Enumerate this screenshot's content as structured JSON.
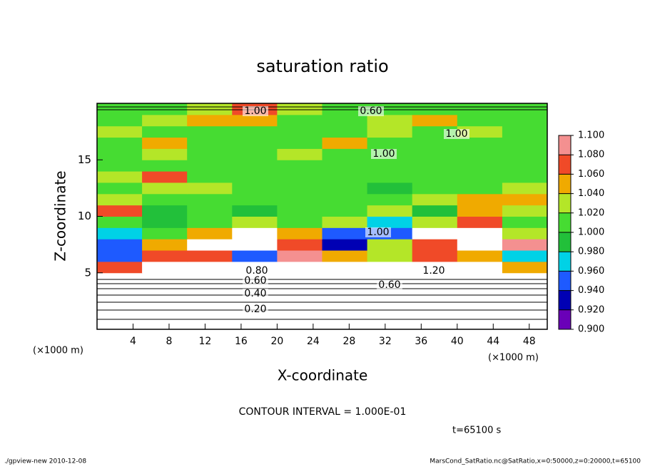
{
  "chart_data": {
    "type": "contour",
    "title": "saturation ratio",
    "xlabel": "X-coordinate",
    "ylabel": "Z-coordinate",
    "x_unit_label": "(×1000 m)",
    "x_unit_label_right": "(×1000 m)",
    "contour_interval": "CONTOUR INTERVAL = 1.000E-01",
    "time_label": "t=65100 s",
    "footer_left": "./gpview-new  2010-12-08",
    "footer_right": "MarsCond_SatRatio.nc@SatRatio,x=0:50000,z=0:20000,t=65100",
    "xlim": [
      0,
      50
    ],
    "ylim": [
      0,
      20
    ],
    "xticks": [
      4,
      8,
      12,
      16,
      20,
      24,
      28,
      32,
      36,
      40,
      44,
      48
    ],
    "yticks": [
      5,
      10,
      15
    ],
    "x": [
      2.5,
      7.5,
      12.5,
      17.5,
      22.5,
      27.5,
      32.5,
      37.5,
      42.5,
      47.5
    ],
    "y": [
      0.5,
      1.5,
      2.5,
      3.5,
      4.5,
      5.5,
      6.5,
      7.5,
      8.5,
      9.5,
      10.5,
      11.5,
      12.5,
      13.5,
      14.5,
      15.5,
      16.5,
      17.5,
      18.5,
      19.5
    ],
    "z": [
      [
        0.1,
        0.1,
        0.1,
        0.1,
        0.1,
        0.1,
        0.1,
        0.1,
        0.1,
        0.1
      ],
      [
        0.25,
        0.25,
        0.25,
        0.25,
        0.25,
        0.25,
        0.25,
        0.25,
        0.25,
        0.25
      ],
      [
        0.4,
        0.4,
        0.4,
        0.4,
        0.4,
        0.4,
        0.4,
        0.4,
        0.4,
        0.4
      ],
      [
        0.55,
        0.55,
        0.55,
        0.55,
        0.55,
        0.55,
        0.55,
        0.55,
        0.55,
        0.55
      ],
      [
        0.8,
        0.8,
        0.8,
        0.8,
        0.8,
        0.8,
        0.8,
        0.8,
        0.8,
        0.8
      ],
      [
        1.06,
        1.15,
        1.15,
        1.12,
        1.15,
        1.15,
        1.15,
        1.15,
        1.15,
        1.04
      ],
      [
        0.95,
        1.07,
        1.06,
        0.94,
        1.08,
        1.05,
        1.03,
        1.06,
        1.04,
        0.96
      ],
      [
        0.94,
        1.04,
        1.12,
        1.15,
        1.06,
        0.93,
        1.03,
        1.07,
        1.15,
        1.08
      ],
      [
        0.97,
        1.01,
        1.05,
        1.12,
        1.04,
        0.95,
        0.94,
        1.15,
        1.12,
        1.02
      ],
      [
        1.0,
        0.99,
        1.01,
        1.02,
        1.0,
        1.02,
        0.97,
        1.03,
        1.06,
        1.01
      ],
      [
        1.07,
        0.98,
        1.01,
        0.99,
        1.01,
        1.0,
        1.02,
        0.98,
        1.05,
        1.03
      ],
      [
        1.02,
        1.01,
        1.0,
        1.01,
        1.0,
        1.01,
        1.0,
        1.02,
        1.04,
        1.05
      ],
      [
        1.01,
        1.02,
        1.03,
        1.0,
        1.01,
        1.0,
        0.99,
        1.0,
        1.01,
        1.02
      ],
      [
        1.02,
        1.06,
        1.0,
        1.01,
        1.0,
        1.01,
        1.0,
        1.01,
        1.0,
        1.01
      ],
      [
        1.01,
        1.01,
        1.0,
        1.0,
        1.01,
        1.0,
        1.01,
        1.0,
        1.0,
        1.01
      ],
      [
        1.0,
        1.03,
        1.01,
        1.0,
        1.02,
        1.01,
        1.0,
        1.0,
        1.01,
        1.0
      ],
      [
        1.01,
        1.04,
        1.0,
        1.01,
        1.0,
        1.04,
        1.01,
        1.0,
        1.0,
        1.01
      ],
      [
        1.02,
        1.01,
        1.01,
        1.0,
        1.0,
        1.01,
        1.02,
        1.01,
        1.02,
        1.01
      ],
      [
        1.0,
        1.02,
        1.05,
        1.04,
        1.01,
        1.0,
        1.03,
        1.04,
        1.0,
        1.01
      ],
      [
        1.01,
        1.01,
        1.03,
        1.06,
        1.02,
        1.01,
        1.0,
        1.01,
        1.01,
        1.0
      ]
    ],
    "levels": [
      {
        "value": 0.9,
        "label": "0.900"
      },
      {
        "value": 0.92,
        "label": "0.920"
      },
      {
        "value": 0.94,
        "label": "0.940"
      },
      {
        "value": 0.96,
        "label": "0.960"
      },
      {
        "value": 0.98,
        "label": "0.980"
      },
      {
        "value": 1.0,
        "label": "1.000"
      },
      {
        "value": 1.02,
        "label": "1.020"
      },
      {
        "value": 1.04,
        "label": "1.040"
      },
      {
        "value": 1.06,
        "label": "1.060"
      },
      {
        "value": 1.08,
        "label": "1.080"
      },
      {
        "value": 1.1,
        "label": "1.100"
      }
    ],
    "colors": [
      "#6a00b8",
      "#0000b4",
      "#1e5aff",
      "#00d2e6",
      "#22c03a",
      "#46dc32",
      "#b4e628",
      "#f0aa00",
      "#f04a28",
      "#f49090"
    ],
    "contour_labels": [
      "0.20",
      "0.40",
      "0.60",
      "0.60",
      "0.80",
      "1.00",
      "1.00",
      "1.00",
      "1.20",
      "1.00",
      "0.60"
    ]
  }
}
